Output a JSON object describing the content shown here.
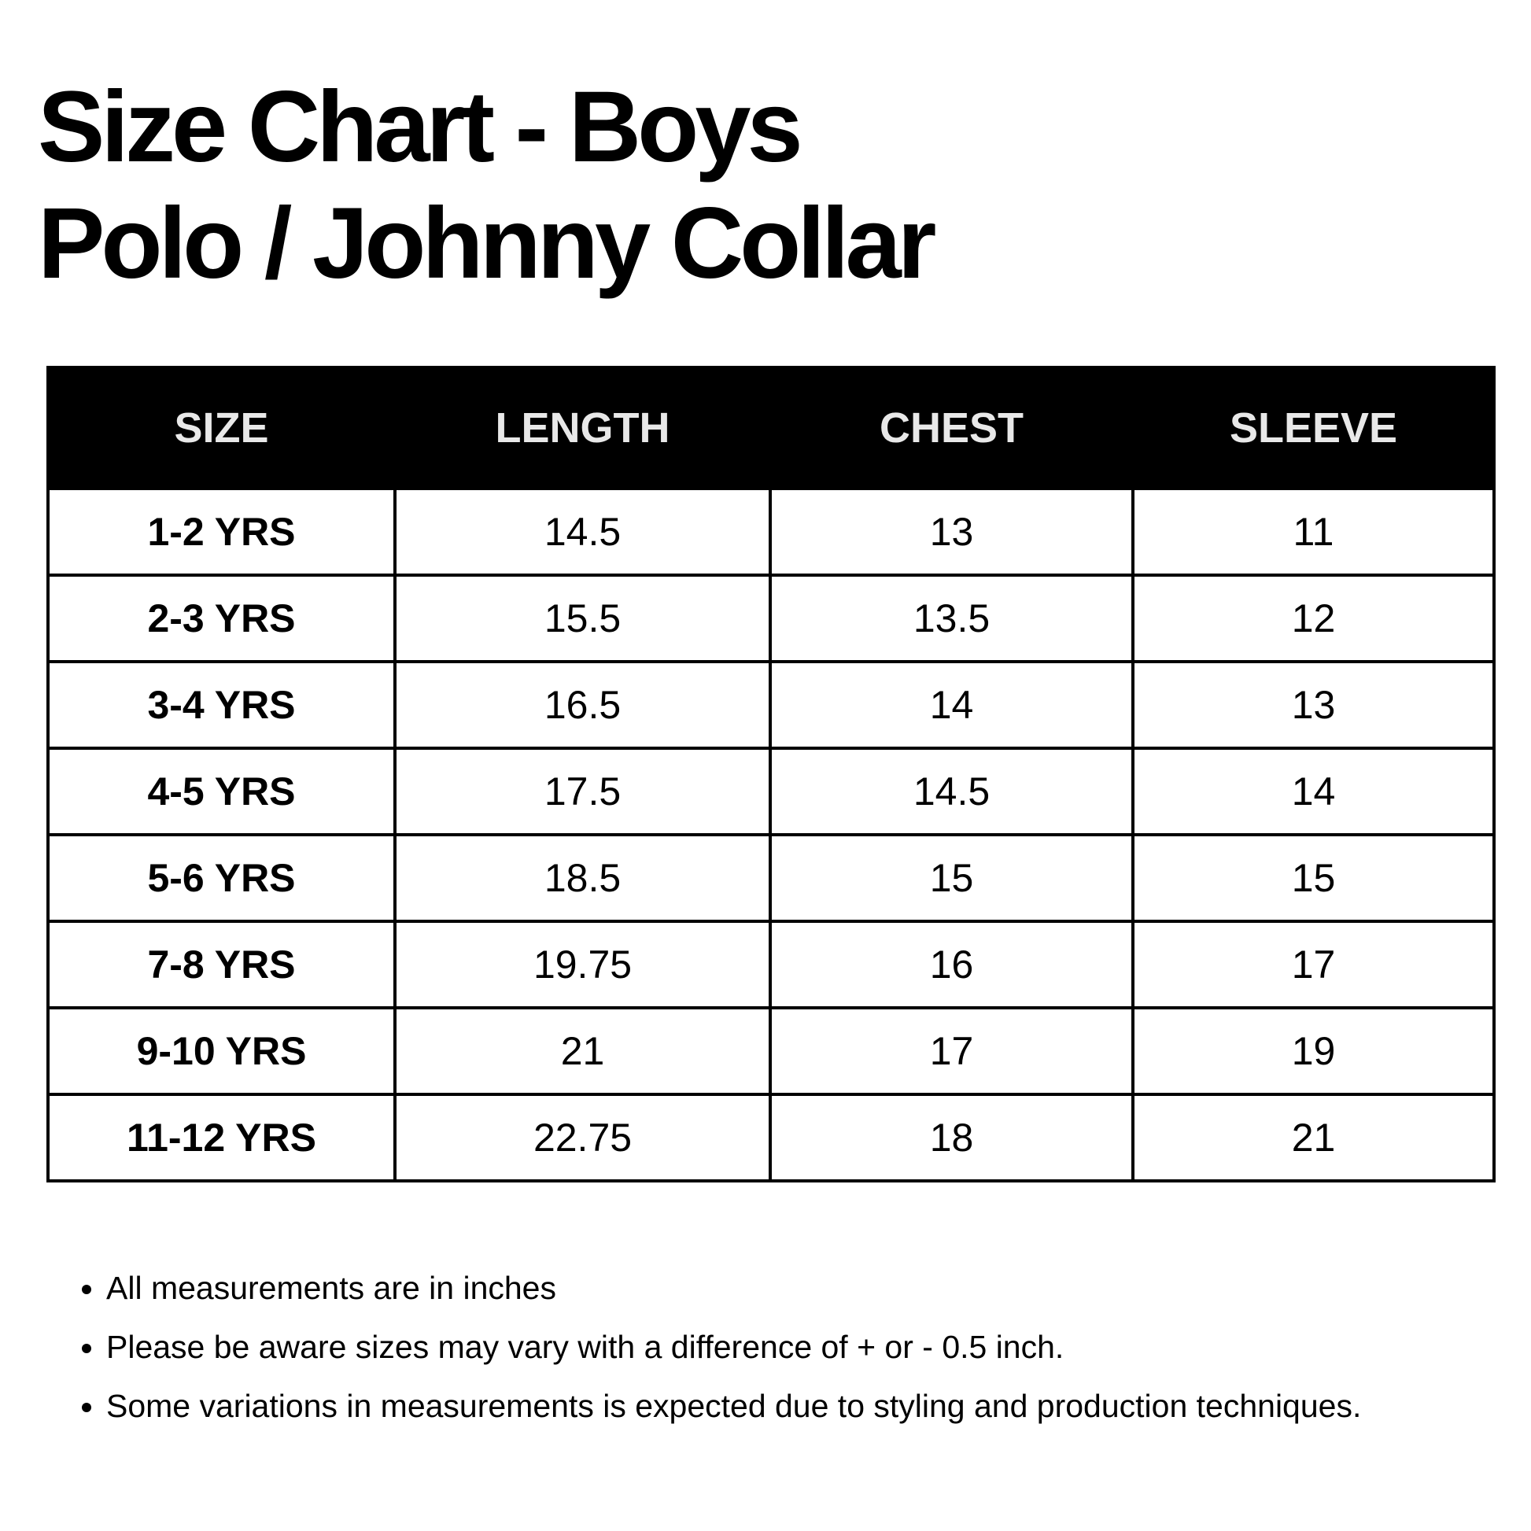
{
  "header": {
    "title": [
      "Size Chart - Boys",
      "Polo / Johnny Collar"
    ]
  },
  "table": {
    "columns": [
      "SIZE",
      "LENGTH",
      "CHEST",
      "SLEEVE"
    ],
    "rows": [
      [
        "1-2 YRS",
        "14.5",
        "13",
        "11"
      ],
      [
        "2-3 YRS",
        "15.5",
        "13.5",
        "12"
      ],
      [
        "3-4 YRS",
        "16.5",
        "14",
        "13"
      ],
      [
        "4-5 YRS",
        "17.5",
        "14.5",
        "14"
      ],
      [
        "5-6 YRS",
        "18.5",
        "15",
        "15"
      ],
      [
        "7-8 YRS",
        "19.75",
        "16",
        "17"
      ],
      [
        "9-10 YRS",
        "21",
        "17",
        "19"
      ],
      [
        "11-12 YRS",
        "22.75",
        "18",
        "21"
      ]
    ]
  },
  "notes": [
    "All measurements are in inches",
    "Please be aware sizes may vary with a difference of + or - 0.5 inch.",
    "Some variations in measurements is expected due to styling and production techniques."
  ]
}
